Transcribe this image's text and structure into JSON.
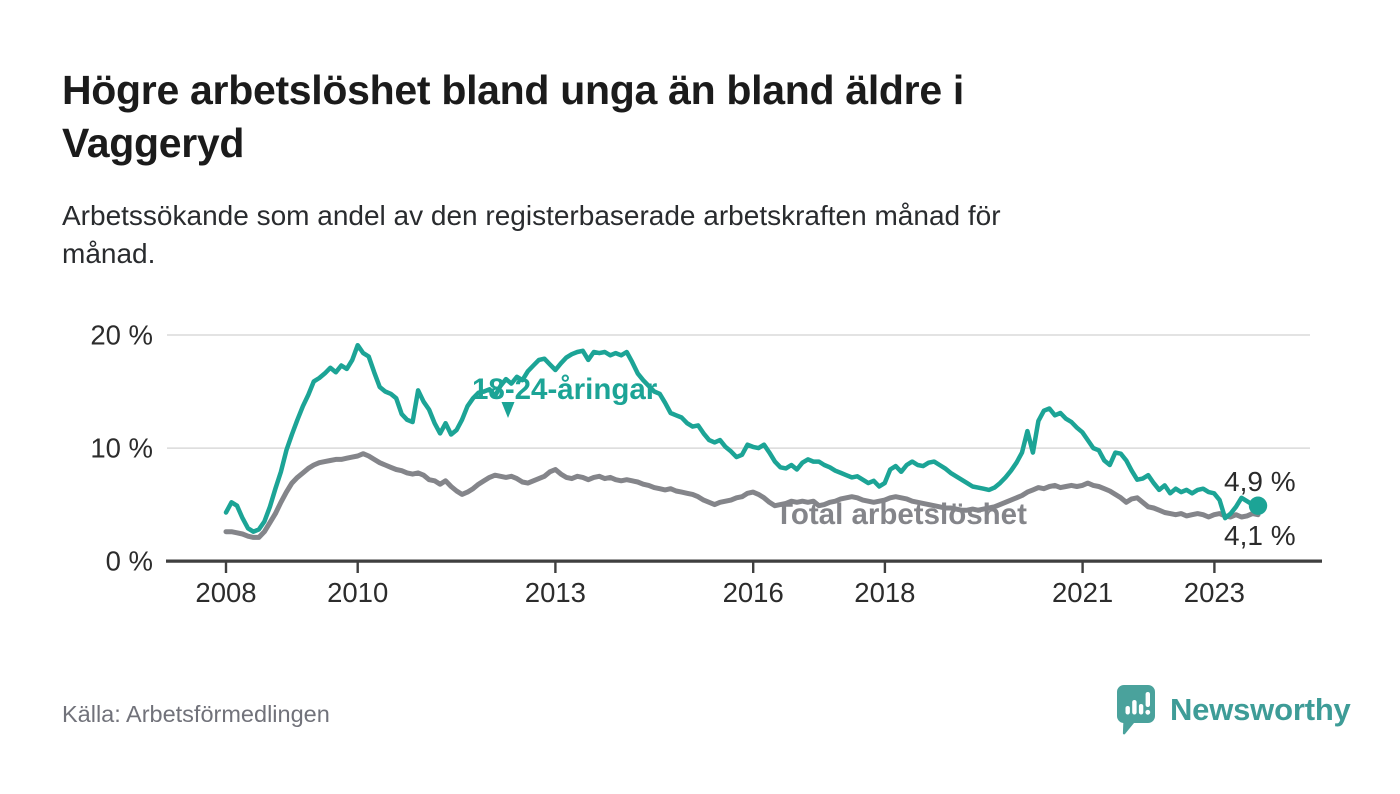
{
  "header": {
    "title_lines": [
      "Högre arbetslöshet bland unga än bland äldre i",
      "Vaggeryd"
    ],
    "subtitle_lines": [
      "Arbetssökande som andel av den registerbaserade arbetskraften månad för",
      "månad."
    ]
  },
  "footer": {
    "source": "Källa: Arbetsförmedlingen",
    "brand": "Newsworthy",
    "brand_color": "#3e9c97",
    "brand_icon": "speech-bubble-bar-chart-icon"
  },
  "chart_data": {
    "type": "line",
    "title": "Högre arbetslöshet bland unga än bland äldre i Vaggeryd",
    "subtitle": "Arbetssökande som andel av den registerbaserade arbetskraften månad för månad.",
    "unit": "%",
    "frequency": "monthly",
    "x_start": "2008-01",
    "x_end": "2023-09",
    "ylim": [
      0,
      21
    ],
    "grid": "horizontal",
    "legend": "inline-labels",
    "y_ticks": [
      {
        "label": "0 %",
        "value": 0
      },
      {
        "label": "10 %",
        "value": 10
      },
      {
        "label": "20 %",
        "value": 20
      }
    ],
    "x_ticks": [
      {
        "label": "2008",
        "year": 2008
      },
      {
        "label": "2010",
        "year": 2010
      },
      {
        "label": "2013",
        "year": 2013
      },
      {
        "label": "2016",
        "year": 2016
      },
      {
        "label": "2018",
        "year": 2018
      },
      {
        "label": "2021",
        "year": 2021
      },
      {
        "label": "2023",
        "year": 2023
      }
    ],
    "series": [
      {
        "name": "18-24-åringar",
        "color": "#1ca496",
        "end_label": "4,9 %",
        "end_value": 4.9,
        "values": [
          4.3,
          5.2,
          4.9,
          3.8,
          2.9,
          2.6,
          2.8,
          3.5,
          4.8,
          6.4,
          7.9,
          9.8,
          11.2,
          12.5,
          13.7,
          14.7,
          15.9,
          16.2,
          16.6,
          17.1,
          16.7,
          17.3,
          17.0,
          17.8,
          19.1,
          18.4,
          18.1,
          16.7,
          15.4,
          15.0,
          14.8,
          14.4,
          13.0,
          12.5,
          12.3,
          15.1,
          14.1,
          13.4,
          12.2,
          11.3,
          12.2,
          11.2,
          11.6,
          12.5,
          13.7,
          14.4,
          14.9,
          15.0,
          15.2,
          14.6,
          15.5,
          16.1,
          15.7,
          16.3,
          16.0,
          16.8,
          17.3,
          17.8,
          17.9,
          17.4,
          16.9,
          17.5,
          18.0,
          18.3,
          18.5,
          18.6,
          17.8,
          18.5,
          18.4,
          18.5,
          18.2,
          18.4,
          18.2,
          18.5,
          17.6,
          16.6,
          16.0,
          15.5,
          15.0,
          14.8,
          14.0,
          13.1,
          12.9,
          12.7,
          12.2,
          11.9,
          12.0,
          11.3,
          10.7,
          10.5,
          10.7,
          10.1,
          9.7,
          9.2,
          9.4,
          10.3,
          10.1,
          10.0,
          10.3,
          9.6,
          8.8,
          8.3,
          8.2,
          8.5,
          8.1,
          8.7,
          9.0,
          8.8,
          8.8,
          8.5,
          8.3,
          8.0,
          7.8,
          7.6,
          7.4,
          7.5,
          7.2,
          6.9,
          7.1,
          6.6,
          6.9,
          8.1,
          8.4,
          7.9,
          8.5,
          8.8,
          8.5,
          8.4,
          8.7,
          8.8,
          8.5,
          8.2,
          7.8,
          7.5,
          7.2,
          6.9,
          6.6,
          6.5,
          6.4,
          6.3,
          6.5,
          6.9,
          7.4,
          8.0,
          8.7,
          9.6,
          11.5,
          9.6,
          12.4,
          13.3,
          13.5,
          12.9,
          13.1,
          12.6,
          12.3,
          11.8,
          11.4,
          10.7,
          10.0,
          9.8,
          8.9,
          8.5,
          9.6,
          9.5,
          8.9,
          8.0,
          7.2,
          7.3,
          7.6,
          6.9,
          6.3,
          6.7,
          6.0,
          6.4,
          6.1,
          6.3,
          6.0,
          6.3,
          6.4,
          6.1,
          6.0,
          5.4,
          3.8,
          4.2,
          4.8,
          5.6,
          5.3,
          5.0,
          4.9
        ]
      },
      {
        "name": "Total arbetslöshet",
        "color": "#84858a",
        "end_label": "4,1 %",
        "end_value": 4.1,
        "values": [
          2.6,
          2.6,
          2.5,
          2.4,
          2.2,
          2.1,
          2.1,
          2.6,
          3.4,
          4.2,
          5.2,
          6.1,
          6.9,
          7.4,
          7.8,
          8.2,
          8.5,
          8.7,
          8.8,
          8.9,
          9.0,
          9.0,
          9.1,
          9.2,
          9.3,
          9.5,
          9.3,
          9.0,
          8.7,
          8.5,
          8.3,
          8.1,
          8.0,
          7.8,
          7.7,
          7.8,
          7.6,
          7.2,
          7.1,
          6.8,
          7.1,
          6.6,
          6.2,
          5.9,
          6.1,
          6.4,
          6.8,
          7.1,
          7.4,
          7.6,
          7.5,
          7.4,
          7.5,
          7.3,
          7.0,
          6.9,
          7.1,
          7.3,
          7.5,
          7.9,
          8.1,
          7.7,
          7.4,
          7.3,
          7.5,
          7.4,
          7.2,
          7.4,
          7.5,
          7.3,
          7.4,
          7.2,
          7.1,
          7.2,
          7.1,
          7.0,
          6.8,
          6.7,
          6.5,
          6.4,
          6.3,
          6.4,
          6.2,
          6.1,
          6.0,
          5.9,
          5.7,
          5.4,
          5.2,
          5.0,
          5.2,
          5.3,
          5.4,
          5.6,
          5.7,
          6.0,
          6.1,
          5.9,
          5.6,
          5.2,
          4.9,
          5.0,
          5.1,
          5.3,
          5.2,
          5.3,
          5.2,
          5.3,
          4.9,
          5.0,
          5.2,
          5.3,
          5.5,
          5.6,
          5.7,
          5.6,
          5.4,
          5.3,
          5.2,
          5.3,
          5.4,
          5.6,
          5.7,
          5.6,
          5.5,
          5.3,
          5.2,
          5.1,
          5.0,
          4.9,
          4.8,
          4.7,
          4.7,
          4.6,
          4.5,
          4.5,
          4.6,
          4.5,
          4.6,
          4.7,
          4.8,
          5.0,
          5.2,
          5.4,
          5.6,
          5.8,
          6.1,
          6.3,
          6.5,
          6.4,
          6.6,
          6.7,
          6.5,
          6.6,
          6.7,
          6.6,
          6.7,
          6.9,
          6.7,
          6.6,
          6.4,
          6.2,
          5.9,
          5.6,
          5.2,
          5.5,
          5.6,
          5.2,
          4.8,
          4.7,
          4.5,
          4.3,
          4.2,
          4.1,
          4.2,
          4.0,
          4.1,
          4.2,
          4.1,
          3.9,
          4.1,
          4.2,
          4.0,
          3.9,
          4.1,
          3.9,
          4.0,
          4.2,
          4.1
        ]
      }
    ]
  }
}
